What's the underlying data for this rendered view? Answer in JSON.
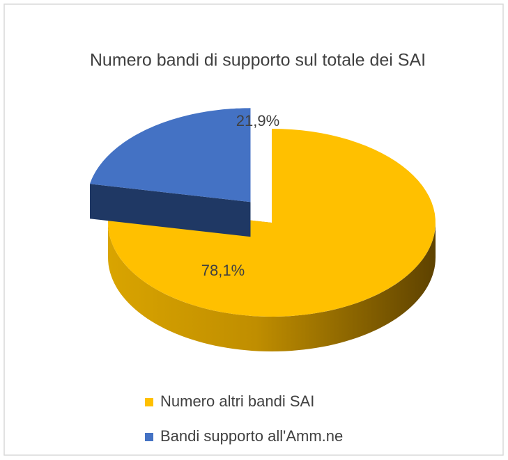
{
  "chart_data": {
    "type": "pie3d",
    "title": "Numero bandi di supporto sul totale dei SAI",
    "categories": [
      "Numero altri bandi SAI",
      "Bandi supporto all'Amm.ne"
    ],
    "values": [
      78.1,
      21.9
    ],
    "value_labels": [
      "78,1%",
      "21,9%"
    ],
    "colors": [
      "#ffc000",
      "#4472c4"
    ],
    "exploded": [
      false,
      true
    ],
    "legend": "bottom"
  }
}
